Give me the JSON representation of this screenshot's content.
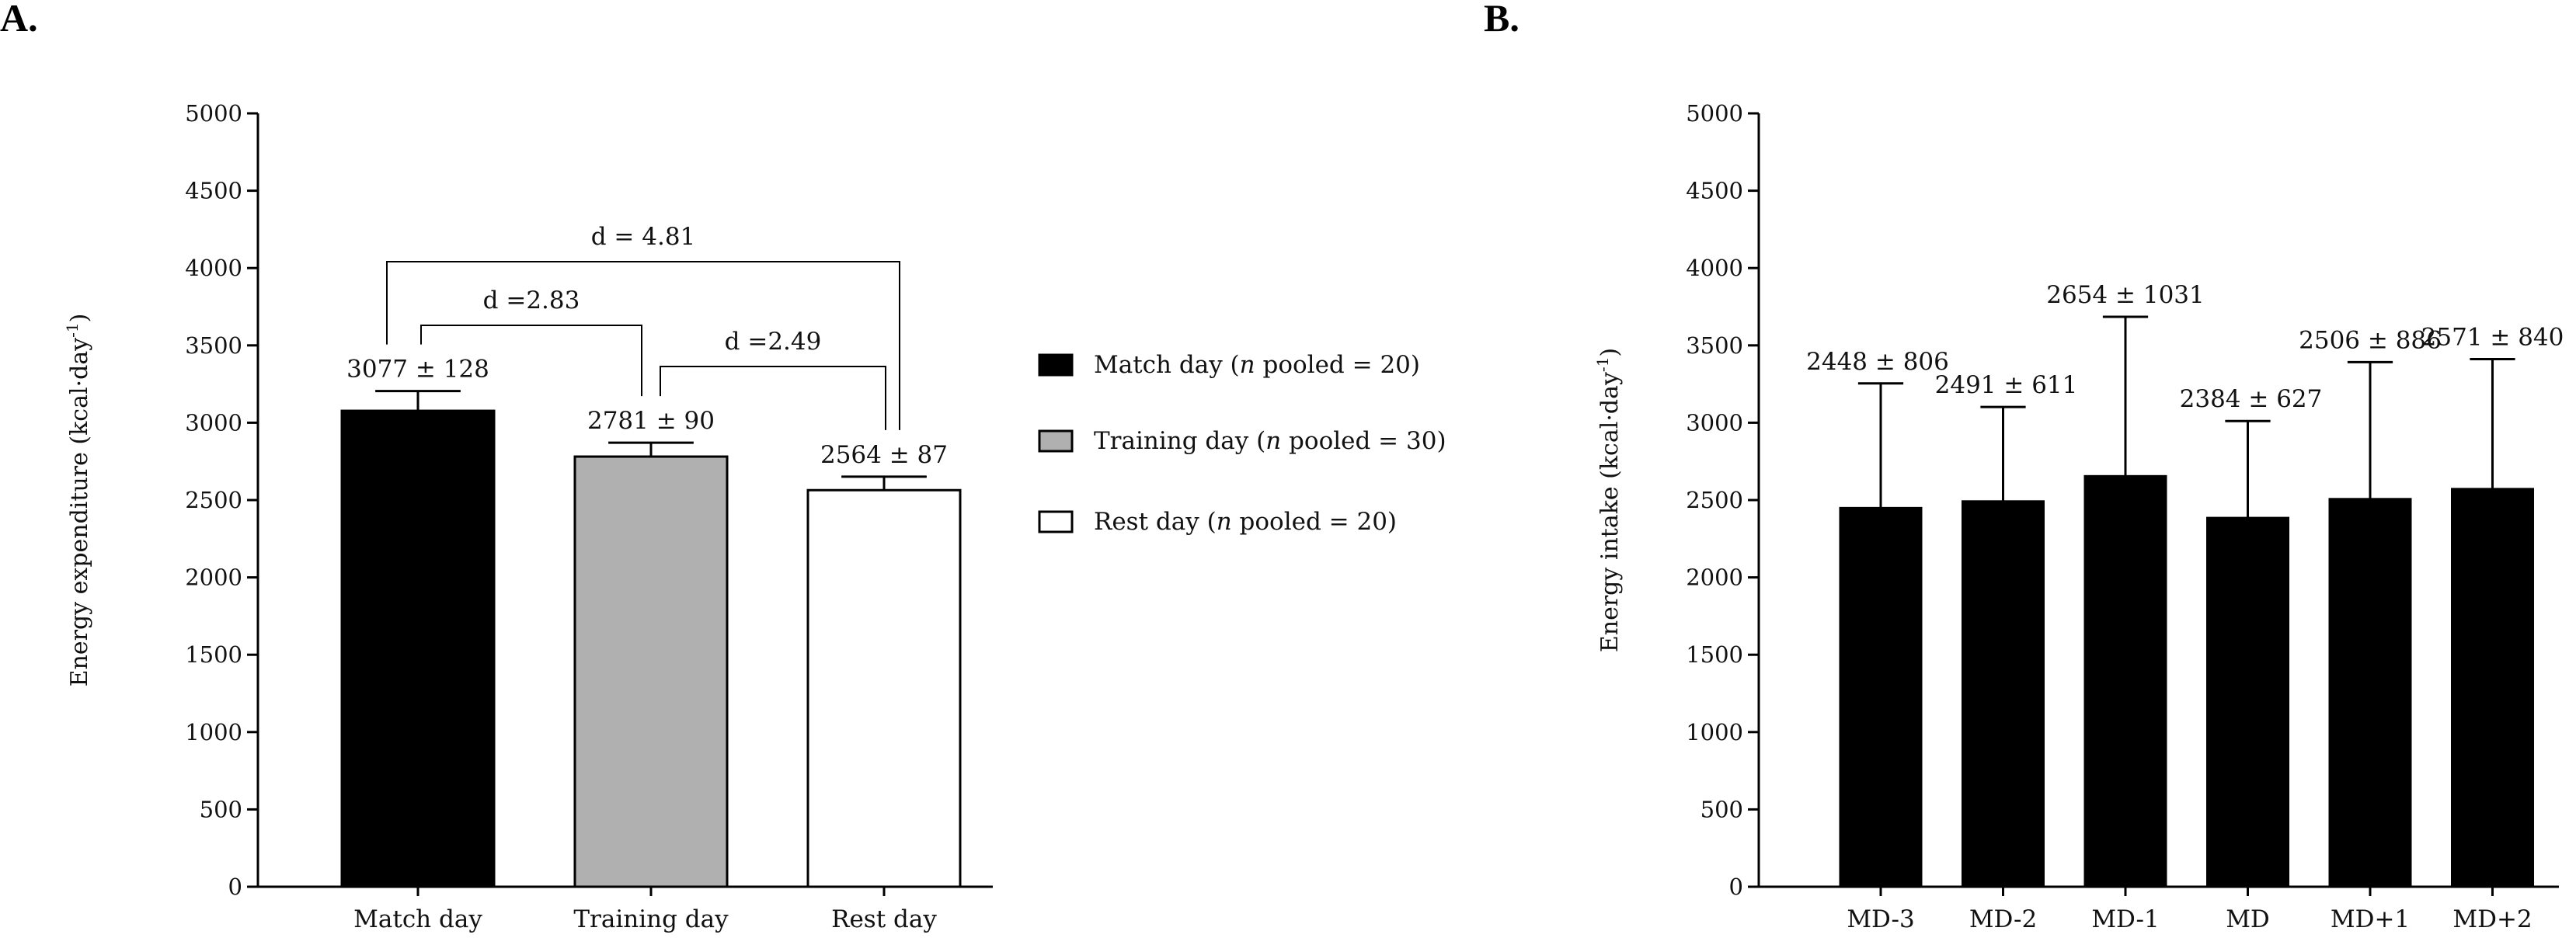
{
  "figure": {
    "panel_a_label": "A.",
    "panel_b_label": "B."
  },
  "chart_data": [
    {
      "type": "bar",
      "panel": "A.",
      "ylabel_main": "Energy expenditure (kcal",
      "ylabel_dot": "·",
      "ylabel_day": "day",
      "ylabel_exp": "-1",
      "ylabel_close": ")",
      "ylim": [
        0,
        5000
      ],
      "yticks": [
        "0",
        "500",
        "1000",
        "1500",
        "2000",
        "2500",
        "3000",
        "3500",
        "4000",
        "4500",
        "5000"
      ],
      "categories": [
        "Match day",
        "Training day",
        "Rest day"
      ],
      "values": [
        3077,
        2781,
        2564
      ],
      "errors": [
        128,
        90,
        87
      ],
      "data_labels": [
        "3077 ± 128",
        "2781 ± 90",
        "2564 ± 87"
      ],
      "colors": [
        "#000000",
        "#b0b0b0",
        "#ffffff"
      ],
      "comparisons": [
        {
          "label": "d = 4.81",
          "from": 0,
          "to": 2
        },
        {
          "label": "d =2.83",
          "from": 0,
          "to": 1
        },
        {
          "label": "d =2.49",
          "from": 1,
          "to": 2
        }
      ],
      "legend": [
        {
          "text_before": "Match day (",
          "n": "n",
          "text_after": " pooled = 20)",
          "color": "#000000"
        },
        {
          "text_before": "Training day (",
          "n": "n",
          "text_after": " pooled = 30)",
          "color": "#b0b0b0"
        },
        {
          "text_before": "Rest day (",
          "n": "n",
          "text_after": " pooled = 20)",
          "color": "#ffffff"
        }
      ],
      "grid": false
    },
    {
      "type": "bar",
      "panel": "B.",
      "ylabel_main": "Energy intake (kcal",
      "ylabel_dot": "·",
      "ylabel_day": "day",
      "ylabel_exp": "-1",
      "ylabel_close": ")",
      "ylim": [
        0,
        5000
      ],
      "yticks": [
        "0",
        "500",
        "1000",
        "1500",
        "2000",
        "2500",
        "3000",
        "3500",
        "4000",
        "4500",
        "5000"
      ],
      "categories": [
        "MD-3",
        "MD-2",
        "MD-1",
        "MD",
        "MD+1",
        "MD+2"
      ],
      "values": [
        2448,
        2491,
        2654,
        2384,
        2506,
        2571
      ],
      "errors": [
        806,
        611,
        1031,
        627,
        886,
        840
      ],
      "data_labels": [
        "2448 ± 806",
        "2491 ± 611",
        "2654 ± 1031",
        "2384 ± 627",
        "2506 ± 886",
        "2571 ± 840"
      ],
      "colors": [
        "#000000"
      ],
      "grid": false
    }
  ]
}
